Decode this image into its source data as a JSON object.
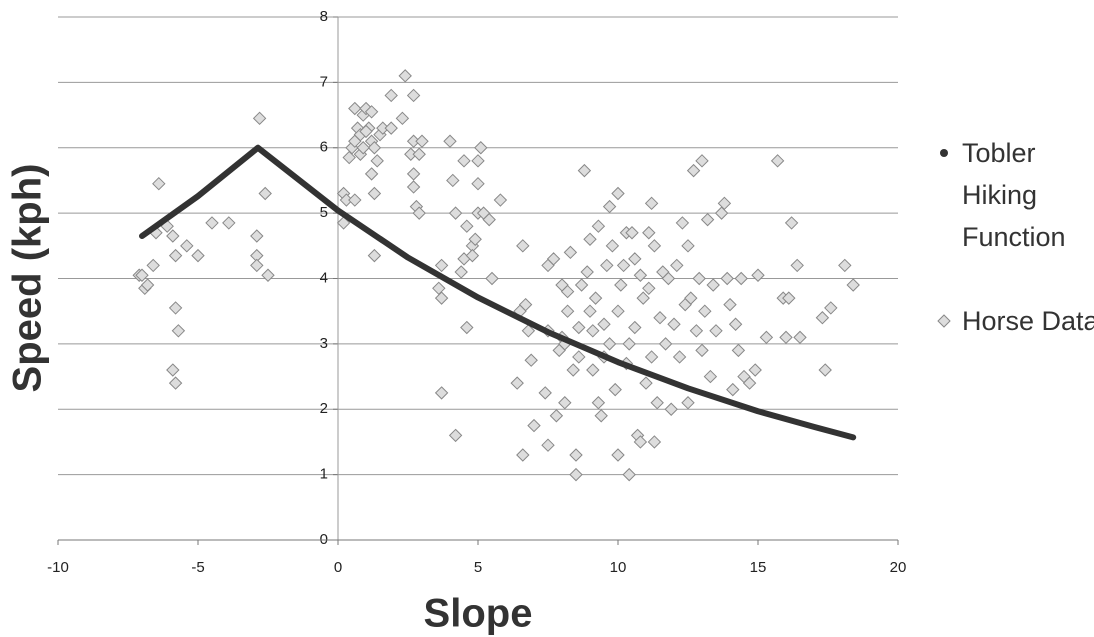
{
  "chart_data": {
    "type": "scatter",
    "x_label": "Slope",
    "y_label": "Speed (kph)",
    "xlim": [
      -10,
      20
    ],
    "xticks": [
      -10,
      -5,
      0,
      5,
      10,
      15,
      20
    ],
    "ylim": [
      0,
      8
    ],
    "yticks": [
      0,
      1,
      2,
      3,
      4,
      5,
      6,
      7,
      8
    ],
    "grid": true,
    "legend": "right",
    "series": [
      {
        "name": "Tobler Hiking Function",
        "type": "line",
        "color": "#333333",
        "x": [
          -7,
          -5,
          -2.86,
          0,
          2.5,
          5,
          7.5,
          10,
          12.5,
          15,
          17,
          18.4
        ],
        "values": [
          4.65,
          5.26,
          6.0,
          5.04,
          4.32,
          3.71,
          3.18,
          2.72,
          2.32,
          1.97,
          1.73,
          1.57
        ]
      },
      {
        "name": "Horse Data",
        "type": "scatter",
        "color": "#dddddd",
        "x": [
          -7.1,
          -7,
          -6.9,
          -6.8,
          -6.6,
          -6.5,
          -6.4,
          -6.1,
          -5.9,
          -5.8,
          -5.4,
          -5,
          -4.5,
          -3.9,
          -5.8,
          -5.7,
          -5.9,
          -5.8,
          -2.8,
          -2.6,
          -2.9,
          -2.9,
          -2.9,
          -2.5,
          0.2,
          0.3,
          0.2,
          0.4,
          0.5,
          0.6,
          0.6,
          0.7,
          0.8,
          0.9,
          1,
          1.1,
          1.2,
          1.3,
          1.4,
          1,
          0.8,
          1.2,
          1.5,
          1.3,
          1.3,
          1.2,
          0.6,
          0.9,
          1.6,
          1.9,
          1.9,
          2.3,
          2.4,
          2.7,
          2.6,
          2.7,
          2.7,
          2.8,
          2.9,
          2.7,
          2.9,
          3,
          3.6,
          3.7,
          3.7,
          3.7,
          4,
          4.1,
          4.2,
          4.2,
          4.5,
          4.4,
          4.5,
          4.6,
          4.6,
          4.8,
          4.8,
          4.9,
          5,
          5,
          5,
          5.1,
          5.2,
          5.4,
          5.5,
          5.8,
          6.4,
          6.5,
          6.6,
          6.6,
          6.7,
          6.8,
          6.9,
          7,
          7.4,
          7.5,
          7.5,
          7.5,
          7.7,
          7.8,
          7.9,
          8,
          8,
          8.1,
          8.1,
          8.2,
          8.2,
          8.3,
          8.4,
          8.5,
          8.5,
          8.6,
          8.6,
          8.7,
          8.8,
          8.9,
          9,
          9,
          9.1,
          9.1,
          9.2,
          9.3,
          9.3,
          9.4,
          9.5,
          9.5,
          9.6,
          9.7,
          9.7,
          9.8,
          9.9,
          10,
          10,
          10,
          10.1,
          10.2,
          10.3,
          10.3,
          10.4,
          10.4,
          10.5,
          10.6,
          10.6,
          10.7,
          10.8,
          10.8,
          10.9,
          11,
          11.1,
          11.1,
          11.2,
          11.2,
          11.3,
          11.3,
          11.4,
          11.5,
          11.6,
          11.7,
          11.8,
          11.9,
          12,
          12.1,
          12.2,
          12.3,
          12.4,
          12.5,
          12.5,
          12.6,
          12.7,
          12.8,
          12.9,
          13,
          13,
          13.1,
          13.2,
          13.3,
          13.4,
          13.5,
          13.7,
          13.8,
          13.9,
          14,
          14.1,
          14.2,
          14.3,
          14.4,
          14.5,
          14.7,
          14.9,
          15,
          15.3,
          15.7,
          15.9,
          16,
          16.1,
          16.2,
          16.4,
          16.5,
          17.3,
          17.4,
          17.6,
          18.1,
          18.4
        ],
        "values": [
          4.05,
          4.05,
          3.85,
          3.9,
          4.2,
          4.7,
          5.45,
          4.8,
          4.65,
          4.35,
          4.5,
          4.35,
          4.85,
          4.85,
          3.55,
          3.2,
          2.6,
          2.4,
          6.45,
          5.3,
          4.65,
          4.35,
          4.2,
          4.05,
          5.3,
          5.2,
          4.85,
          5.85,
          6,
          6.1,
          6.6,
          6.3,
          6.2,
          6.5,
          6.6,
          6.3,
          6.1,
          6,
          5.8,
          6.25,
          5.9,
          6.55,
          6.2,
          5.3,
          4.35,
          5.6,
          5.2,
          6,
          6.3,
          6.3,
          6.8,
          6.45,
          7.1,
          6.8,
          5.9,
          5.6,
          5.4,
          5.1,
          5,
          6.1,
          5.9,
          6.1,
          3.85,
          3.7,
          4.2,
          2.25,
          6.1,
          5.5,
          5,
          1.6,
          5.8,
          4.1,
          4.3,
          4.8,
          3.25,
          4.5,
          4.35,
          4.6,
          5.8,
          5.45,
          5,
          6,
          5,
          4.9,
          4,
          5.2,
          2.4,
          3.5,
          4.5,
          1.3,
          3.6,
          3.2,
          2.75,
          1.75,
          2.25,
          1.45,
          3.2,
          4.2,
          4.3,
          1.9,
          2.9,
          3.1,
          3.9,
          3,
          2.1,
          3.5,
          3.8,
          4.4,
          2.6,
          1.3,
          1,
          2.8,
          3.25,
          3.9,
          5.65,
          4.1,
          4.6,
          3.5,
          3.2,
          2.6,
          3.7,
          4.8,
          2.1,
          1.9,
          3.3,
          2.8,
          4.2,
          5.1,
          3,
          4.5,
          2.3,
          5.3,
          3.5,
          1.3,
          3.9,
          4.2,
          4.7,
          2.7,
          3,
          1,
          4.7,
          4.3,
          3.25,
          1.6,
          1.5,
          4.05,
          3.7,
          2.4,
          3.85,
          4.7,
          5.15,
          2.8,
          4.5,
          1.5,
          2.1,
          3.4,
          4.1,
          3,
          4,
          2,
          3.3,
          4.2,
          2.8,
          4.85,
          3.6,
          4.5,
          2.1,
          3.7,
          5.65,
          3.2,
          4,
          5.8,
          2.9,
          3.5,
          4.9,
          2.5,
          3.9,
          3.2,
          5,
          5.15,
          4,
          3.6,
          2.3,
          3.3,
          2.9,
          4,
          2.5,
          2.4,
          2.6,
          4.05,
          3.1,
          5.8,
          3.7,
          3.1,
          3.7,
          4.85,
          4.2,
          3.1,
          3.4,
          2.6,
          3.55,
          4.2,
          3.9
        ]
      }
    ]
  }
}
